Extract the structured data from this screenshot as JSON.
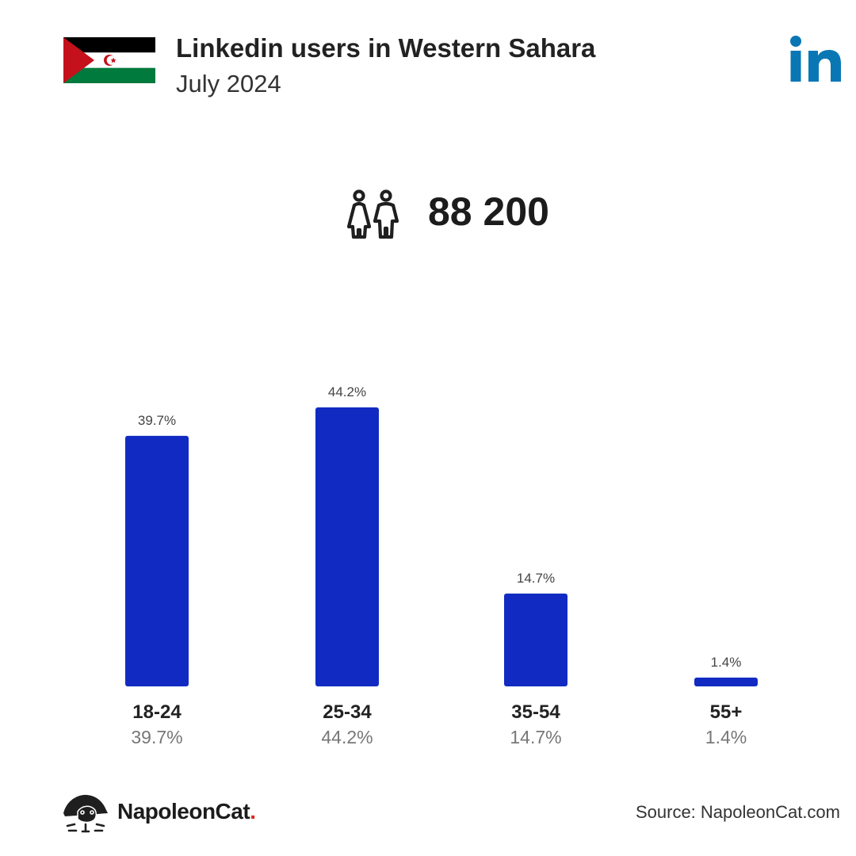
{
  "header": {
    "title": "Linkedin users in Western Sahara",
    "subtitle": "July 2024",
    "flag_icon": "western-sahara-flag-icon",
    "logo_icon": "linkedin-logo-icon"
  },
  "summary": {
    "total_users": "88 200",
    "icon": "users-icon"
  },
  "chart_data": {
    "type": "bar",
    "categories": [
      "18-24",
      "25-34",
      "35-54",
      "55+"
    ],
    "values": [
      39.7,
      44.2,
      14.7,
      1.4
    ],
    "value_labels": [
      "39.7%",
      "44.2%",
      "14.7%",
      "1.4%"
    ],
    "ylim": [
      0,
      44.2
    ],
    "grid": false,
    "bar_color": "#112bc2"
  },
  "footer": {
    "brand_name": "NapoleonCat",
    "brand_dot": ".",
    "source": "Source: NapoleonCat.com",
    "brand_icon": "napoleoncat-logo-icon"
  },
  "colors": {
    "bar": "#112bc2",
    "linkedin": "#0a77b5",
    "brand_dot": "#e2231a"
  }
}
